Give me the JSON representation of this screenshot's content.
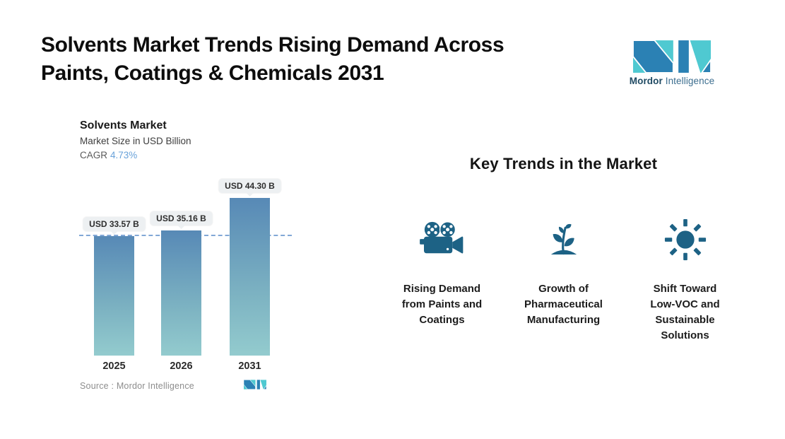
{
  "header": {
    "title_lines": [
      "Solvents Market Trends Rising Demand Across",
      "Paints, Coatings & Chemicals 2031"
    ]
  },
  "brand": {
    "name_bold": "Mordor",
    "name_regular": "Intelligence",
    "colors": {
      "teal": "#4fc9d1",
      "blue": "#2b81b4",
      "text_dark": "#1f4a63",
      "text_light": "#3c6e8f"
    }
  },
  "chart": {
    "title": "Solvents Market",
    "subtitle": "Market Size in USD Billion",
    "cagr_label": "CAGR",
    "cagr_value": "4.73%",
    "source_label": "Source :  Mordor Intelligence",
    "bars": [
      {
        "year": "2025",
        "label": "USD 33.57 B",
        "value": 33.57
      },
      {
        "year": "2026",
        "label": "USD 35.16 B",
        "value": 35.16
      },
      {
        "year": "2031",
        "label": "USD 44.30 B",
        "value": 44.3
      }
    ],
    "colors": {
      "bar_top": "#5789b6",
      "bar_bottom": "#93cbce",
      "dash_line": "#82a8d6",
      "callout_bg": "#edf0f2",
      "cagr_value": "#6aa3da"
    }
  },
  "trends": {
    "heading": "Key Trends in the Market",
    "icon_color": "#1d6285",
    "items": [
      {
        "icon": "video-camera-icon",
        "lines": [
          "Rising Demand",
          "from Paints and",
          "Coatings"
        ]
      },
      {
        "icon": "plant-growth-icon",
        "lines": [
          "Growth of",
          "Pharmaceutical",
          "Manufacturing"
        ]
      },
      {
        "icon": "sun-icon",
        "lines": [
          "Shift Toward",
          "Low-VOC and",
          "Sustainable",
          "Solutions"
        ]
      }
    ]
  },
  "chart_data": {
    "type": "bar",
    "categories": [
      "2025",
      "2026",
      "2031"
    ],
    "values": [
      33.57,
      35.16,
      44.3
    ],
    "data_labels": [
      "USD 33.57 B",
      "USD 35.16 B",
      "USD 44.30 B"
    ],
    "title": "Solvents Market",
    "subtitle": "Market Size in USD Billion",
    "cagr": "4.73%",
    "xlabel": "",
    "ylabel": "Market Size in USD Billion",
    "ylim": [
      0,
      45
    ],
    "baseline": 0,
    "reference_line": 33.57,
    "grid": "off",
    "legend": "none",
    "source": "Mordor Intelligence"
  }
}
